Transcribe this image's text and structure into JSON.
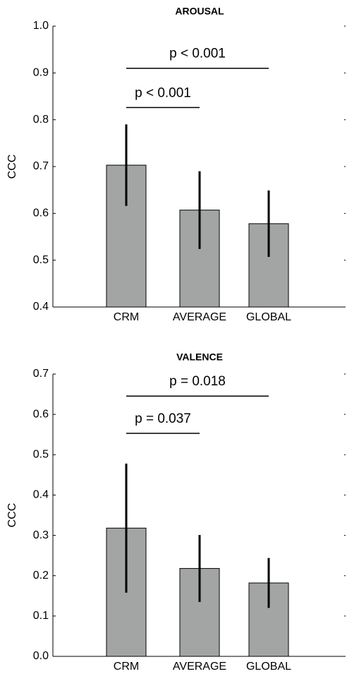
{
  "chart_data": [
    {
      "type": "bar",
      "title": "AROUSAL",
      "ylabel": "CCC",
      "categories": [
        "CRM",
        "AVERAGE",
        "GLOBAL"
      ],
      "values": [
        0.703,
        0.607,
        0.578
      ],
      "errors": [
        0.087,
        0.083,
        0.071
      ],
      "color": "#a3a5a5",
      "ylim": [
        0.4,
        1.0
      ],
      "yticks": [
        0.4,
        0.5,
        0.6,
        0.7,
        0.8,
        0.9,
        {
          "value": 1.0,
          "label": "1.0"
        }
      ],
      "annotations": [
        "p < 0.001",
        "p < 0.001"
      ]
    },
    {
      "type": "bar",
      "title": "VALENCE",
      "ylabel": "CCC",
      "categories": [
        "CRM",
        "AVERAGE",
        "GLOBAL"
      ],
      "values": [
        0.318,
        0.218,
        0.182
      ],
      "errors": [
        0.16,
        0.083,
        0.062
      ],
      "color": "#a3a5a5",
      "ylim": [
        0.0,
        0.7
      ],
      "yticks": [
        {
          "value": 0.0,
          "label": "0.0"
        },
        0.1,
        0.2,
        0.3,
        0.4,
        0.5,
        0.6,
        0.7
      ],
      "annotations": [
        "p = 0.018",
        "p = 0.037"
      ]
    }
  ]
}
